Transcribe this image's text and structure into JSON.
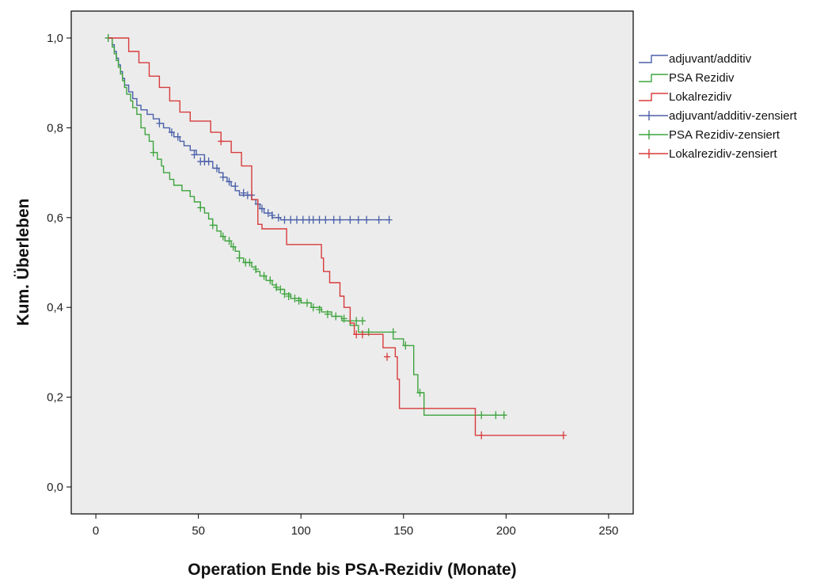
{
  "chart_data": {
    "type": "line",
    "subtype": "kaplan-meier",
    "title": "",
    "xlabel": "Operation Ende bis PSA-Rezidiv (Monate)",
    "ylabel": "Kum. Überleben",
    "xlim": [
      -12,
      262
    ],
    "ylim": [
      -0.06,
      1.06
    ],
    "x_ticks": [
      0,
      50,
      100,
      150,
      200,
      250
    ],
    "x_tick_labels": [
      "0",
      "50",
      "100",
      "150",
      "200",
      "250"
    ],
    "y_ticks": [
      0.0,
      0.2,
      0.4,
      0.6,
      0.8,
      1.0
    ],
    "y_tick_labels": [
      "0,0",
      "0,2",
      "0,4",
      "0,6",
      "0,8",
      "1,0"
    ],
    "grid": false,
    "legend_position": "right",
    "background": "#ececec",
    "series": [
      {
        "name": "adjuvant/additiv",
        "color": "#4a5fa8",
        "steps": [
          [
            6,
            1.0
          ],
          [
            8,
            0.985
          ],
          [
            9,
            0.97
          ],
          [
            10,
            0.955
          ],
          [
            11,
            0.94
          ],
          [
            12,
            0.925
          ],
          [
            13,
            0.91
          ],
          [
            14,
            0.895
          ],
          [
            16,
            0.88
          ],
          [
            18,
            0.865
          ],
          [
            20,
            0.85
          ],
          [
            22,
            0.84
          ],
          [
            25,
            0.83
          ],
          [
            28,
            0.82
          ],
          [
            31,
            0.81
          ],
          [
            33,
            0.8
          ],
          [
            36,
            0.79
          ],
          [
            38,
            0.78
          ],
          [
            41,
            0.77
          ],
          [
            43,
            0.76
          ],
          [
            46,
            0.75
          ],
          [
            49,
            0.74
          ],
          [
            53,
            0.725
          ],
          [
            57,
            0.71
          ],
          [
            60,
            0.7
          ],
          [
            62,
            0.69
          ],
          [
            64,
            0.68
          ],
          [
            66,
            0.67
          ],
          [
            68,
            0.66
          ],
          [
            70,
            0.65
          ],
          [
            76,
            0.64
          ],
          [
            78,
            0.63
          ],
          [
            80,
            0.62
          ],
          [
            82,
            0.61
          ],
          [
            86,
            0.6
          ],
          [
            90,
            0.595
          ],
          [
            143,
            0.595
          ]
        ],
        "censored": [
          [
            6,
            1.0
          ],
          [
            31,
            0.81
          ],
          [
            37,
            0.79
          ],
          [
            40,
            0.78
          ],
          [
            48,
            0.74
          ],
          [
            51,
            0.725
          ],
          [
            53,
            0.725
          ],
          [
            55,
            0.725
          ],
          [
            59,
            0.71
          ],
          [
            62,
            0.69
          ],
          [
            65,
            0.68
          ],
          [
            68,
            0.67
          ],
          [
            72,
            0.655
          ],
          [
            74,
            0.65
          ],
          [
            76,
            0.65
          ],
          [
            79,
            0.63
          ],
          [
            81,
            0.62
          ],
          [
            84,
            0.61
          ],
          [
            86,
            0.605
          ],
          [
            89,
            0.6
          ],
          [
            92,
            0.595
          ],
          [
            95,
            0.595
          ],
          [
            98,
            0.595
          ],
          [
            101,
            0.595
          ],
          [
            104,
            0.595
          ],
          [
            106,
            0.595
          ],
          [
            109,
            0.595
          ],
          [
            112,
            0.595
          ],
          [
            116,
            0.595
          ],
          [
            119,
            0.595
          ],
          [
            124,
            0.595
          ],
          [
            128,
            0.595
          ],
          [
            132,
            0.595
          ],
          [
            138,
            0.595
          ],
          [
            143,
            0.595
          ]
        ]
      },
      {
        "name": "PSA Rezidiv",
        "color": "#3ea43e",
        "steps": [
          [
            6,
            1.0
          ],
          [
            8,
            0.98
          ],
          [
            9,
            0.965
          ],
          [
            10,
            0.95
          ],
          [
            11,
            0.935
          ],
          [
            12,
            0.92
          ],
          [
            13,
            0.905
          ],
          [
            14,
            0.89
          ],
          [
            15,
            0.875
          ],
          [
            17,
            0.86
          ],
          [
            18,
            0.845
          ],
          [
            20,
            0.83
          ],
          [
            22,
            0.8
          ],
          [
            24,
            0.785
          ],
          [
            26,
            0.77
          ],
          [
            28,
            0.745
          ],
          [
            30,
            0.73
          ],
          [
            32,
            0.715
          ],
          [
            33,
            0.7
          ],
          [
            36,
            0.685
          ],
          [
            38,
            0.672
          ],
          [
            42,
            0.66
          ],
          [
            46,
            0.647
          ],
          [
            48,
            0.635
          ],
          [
            51,
            0.622
          ],
          [
            53,
            0.61
          ],
          [
            55,
            0.597
          ],
          [
            57,
            0.583
          ],
          [
            59,
            0.57
          ],
          [
            61,
            0.558
          ],
          [
            63,
            0.548
          ],
          [
            66,
            0.535
          ],
          [
            68,
            0.525
          ],
          [
            70,
            0.51
          ],
          [
            72,
            0.5
          ],
          [
            76,
            0.49
          ],
          [
            78,
            0.48
          ],
          [
            80,
            0.47
          ],
          [
            83,
            0.46
          ],
          [
            86,
            0.45
          ],
          [
            88,
            0.44
          ],
          [
            92,
            0.43
          ],
          [
            95,
            0.42
          ],
          [
            100,
            0.41
          ],
          [
            105,
            0.4
          ],
          [
            110,
            0.39
          ],
          [
            115,
            0.38
          ],
          [
            120,
            0.37
          ],
          [
            124,
            0.36
          ],
          [
            128,
            0.345
          ],
          [
            145,
            0.33
          ],
          [
            150,
            0.315
          ],
          [
            155,
            0.25
          ],
          [
            157,
            0.21
          ],
          [
            160,
            0.16
          ],
          [
            200,
            0.16
          ]
        ],
        "censored": [
          [
            6,
            1.0
          ],
          [
            28,
            0.745
          ],
          [
            51,
            0.622
          ],
          [
            57,
            0.583
          ],
          [
            62,
            0.558
          ],
          [
            65,
            0.548
          ],
          [
            67,
            0.535
          ],
          [
            70,
            0.51
          ],
          [
            73,
            0.5
          ],
          [
            75,
            0.5
          ],
          [
            78,
            0.485
          ],
          [
            82,
            0.47
          ],
          [
            85,
            0.46
          ],
          [
            88,
            0.445
          ],
          [
            90,
            0.44
          ],
          [
            92,
            0.43
          ],
          [
            94,
            0.425
          ],
          [
            97,
            0.42
          ],
          [
            99,
            0.415
          ],
          [
            103,
            0.41
          ],
          [
            106,
            0.4
          ],
          [
            109,
            0.395
          ],
          [
            113,
            0.385
          ],
          [
            117,
            0.38
          ],
          [
            121,
            0.375
          ],
          [
            124,
            0.37
          ],
          [
            127,
            0.37
          ],
          [
            130,
            0.37
          ],
          [
            133,
            0.345
          ],
          [
            145,
            0.345
          ],
          [
            151,
            0.315
          ],
          [
            158,
            0.21
          ],
          [
            188,
            0.16
          ],
          [
            195,
            0.16
          ],
          [
            199,
            0.16
          ]
        ]
      },
      {
        "name": "Lokalrezidiv",
        "color": "#d83b3b",
        "steps": [
          [
            6,
            1.0
          ],
          [
            16,
            0.97
          ],
          [
            21,
            0.945
          ],
          [
            26,
            0.915
          ],
          [
            31,
            0.89
          ],
          [
            36,
            0.86
          ],
          [
            41,
            0.835
          ],
          [
            46,
            0.815
          ],
          [
            56,
            0.79
          ],
          [
            61,
            0.77
          ],
          [
            66,
            0.745
          ],
          [
            71,
            0.715
          ],
          [
            76,
            0.64
          ],
          [
            79,
            0.585
          ],
          [
            81,
            0.575
          ],
          [
            91,
            0.575
          ],
          [
            93,
            0.54
          ],
          [
            110,
            0.51
          ],
          [
            111,
            0.48
          ],
          [
            114,
            0.455
          ],
          [
            119,
            0.425
          ],
          [
            121,
            0.4
          ],
          [
            124,
            0.365
          ],
          [
            126,
            0.34
          ],
          [
            140,
            0.31
          ],
          [
            146,
            0.29
          ],
          [
            147,
            0.24
          ],
          [
            148,
            0.175
          ],
          [
            185,
            0.115
          ],
          [
            228,
            0.115
          ]
        ],
        "censored": [
          [
            61,
            0.77
          ],
          [
            127,
            0.34
          ],
          [
            130,
            0.34
          ],
          [
            142,
            0.29
          ],
          [
            188,
            0.115
          ],
          [
            228,
            0.115
          ]
        ]
      }
    ],
    "legend_entries": [
      {
        "label": "adjuvant/additiv",
        "series": 0,
        "style": "step"
      },
      {
        "label": "PSA Rezidiv",
        "series": 1,
        "style": "step"
      },
      {
        "label": "Lokalrezidiv",
        "series": 2,
        "style": "step"
      },
      {
        "label": "adjuvant/additiv-zensiert",
        "series": 0,
        "style": "censor"
      },
      {
        "label": "PSA Rezidiv-zensiert",
        "series": 1,
        "style": "censor"
      },
      {
        "label": "Lokalrezidiv-zensiert",
        "series": 2,
        "style": "censor"
      }
    ]
  }
}
